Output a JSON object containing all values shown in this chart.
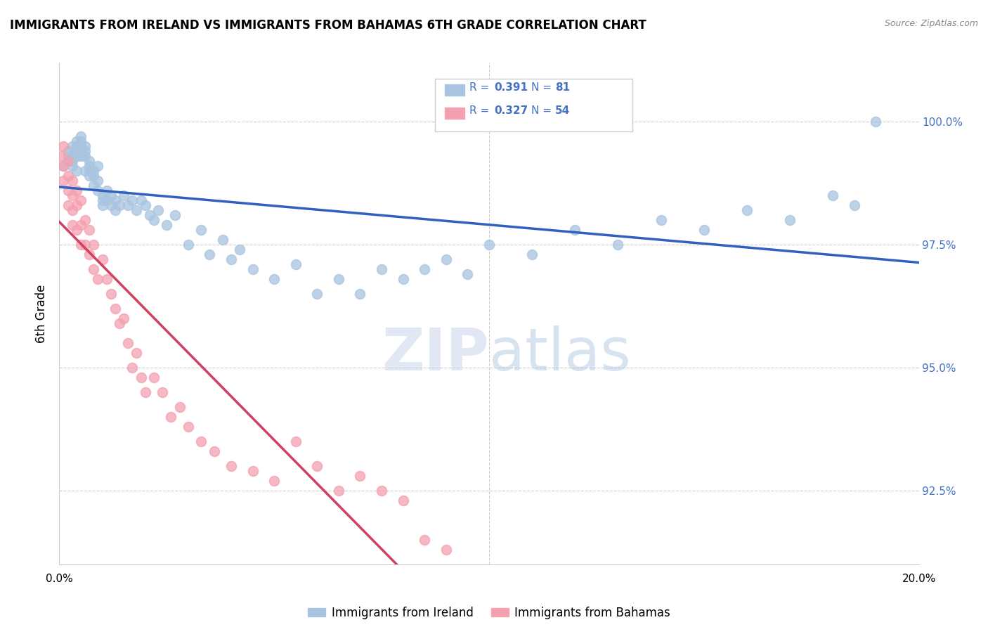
{
  "title": "IMMIGRANTS FROM IRELAND VS IMMIGRANTS FROM BAHAMAS 6TH GRADE CORRELATION CHART",
  "source": "Source: ZipAtlas.com",
  "ylabel": "6th Grade",
  "yticks": [
    92.5,
    95.0,
    97.5,
    100.0
  ],
  "ytick_labels": [
    "92.5%",
    "95.0%",
    "97.5%",
    "100.0%"
  ],
  "xlim": [
    0.0,
    0.2
  ],
  "ylim": [
    91.0,
    101.2
  ],
  "ireland_R": 0.391,
  "ireland_N": 81,
  "bahamas_R": 0.327,
  "bahamas_N": 54,
  "ireland_color": "#a8c4e0",
  "bahamas_color": "#f4a0b0",
  "ireland_line_color": "#3060c0",
  "bahamas_line_color": "#d04060",
  "legend_text_color": "#4472c4",
  "ireland_x": [
    0.001,
    0.002,
    0.002,
    0.002,
    0.003,
    0.003,
    0.003,
    0.003,
    0.004,
    0.004,
    0.004,
    0.004,
    0.004,
    0.005,
    0.005,
    0.005,
    0.005,
    0.005,
    0.006,
    0.006,
    0.006,
    0.006,
    0.007,
    0.007,
    0.007,
    0.007,
    0.008,
    0.008,
    0.008,
    0.009,
    0.009,
    0.009,
    0.01,
    0.01,
    0.01,
    0.011,
    0.011,
    0.012,
    0.012,
    0.013,
    0.013,
    0.014,
    0.015,
    0.016,
    0.017,
    0.018,
    0.019,
    0.02,
    0.021,
    0.022,
    0.023,
    0.025,
    0.027,
    0.03,
    0.033,
    0.035,
    0.038,
    0.04,
    0.042,
    0.045,
    0.05,
    0.055,
    0.06,
    0.065,
    0.07,
    0.075,
    0.08,
    0.085,
    0.09,
    0.095,
    0.1,
    0.11,
    0.12,
    0.13,
    0.14,
    0.15,
    0.16,
    0.17,
    0.18,
    0.185,
    0.19
  ],
  "ireland_y": [
    99.1,
    99.3,
    99.2,
    99.4,
    99.5,
    99.3,
    99.1,
    99.2,
    99.6,
    99.5,
    99.4,
    99.3,
    99.0,
    99.7,
    99.6,
    99.5,
    99.4,
    99.3,
    99.5,
    99.4,
    99.3,
    99.0,
    99.2,
    99.1,
    99.0,
    98.9,
    99.0,
    98.9,
    98.7,
    99.1,
    98.8,
    98.6,
    98.5,
    98.4,
    98.3,
    98.6,
    98.4,
    98.5,
    98.3,
    98.4,
    98.2,
    98.3,
    98.5,
    98.3,
    98.4,
    98.2,
    98.4,
    98.3,
    98.1,
    98.0,
    98.2,
    97.9,
    98.1,
    97.5,
    97.8,
    97.3,
    97.6,
    97.2,
    97.4,
    97.0,
    96.8,
    97.1,
    96.5,
    96.8,
    96.5,
    97.0,
    96.8,
    97.0,
    97.2,
    96.9,
    97.5,
    97.3,
    97.8,
    97.5,
    98.0,
    97.8,
    98.2,
    98.0,
    98.5,
    98.3,
    100.0
  ],
  "bahamas_x": [
    0.0005,
    0.001,
    0.001,
    0.001,
    0.002,
    0.002,
    0.002,
    0.002,
    0.003,
    0.003,
    0.003,
    0.003,
    0.004,
    0.004,
    0.004,
    0.005,
    0.005,
    0.005,
    0.006,
    0.006,
    0.007,
    0.007,
    0.008,
    0.008,
    0.009,
    0.01,
    0.011,
    0.012,
    0.013,
    0.014,
    0.015,
    0.016,
    0.017,
    0.018,
    0.019,
    0.02,
    0.022,
    0.024,
    0.026,
    0.028,
    0.03,
    0.033,
    0.036,
    0.04,
    0.045,
    0.05,
    0.055,
    0.06,
    0.065,
    0.07,
    0.075,
    0.08,
    0.085,
    0.09
  ],
  "bahamas_y": [
    99.3,
    99.5,
    99.1,
    98.8,
    99.2,
    98.9,
    98.6,
    98.3,
    98.8,
    98.5,
    98.2,
    97.9,
    98.6,
    98.3,
    97.8,
    98.4,
    97.9,
    97.5,
    98.0,
    97.5,
    97.8,
    97.3,
    97.5,
    97.0,
    96.8,
    97.2,
    96.8,
    96.5,
    96.2,
    95.9,
    96.0,
    95.5,
    95.0,
    95.3,
    94.8,
    94.5,
    94.8,
    94.5,
    94.0,
    94.2,
    93.8,
    93.5,
    93.3,
    93.0,
    92.9,
    92.7,
    93.5,
    93.0,
    92.5,
    92.8,
    92.5,
    92.3,
    91.5,
    91.3
  ]
}
